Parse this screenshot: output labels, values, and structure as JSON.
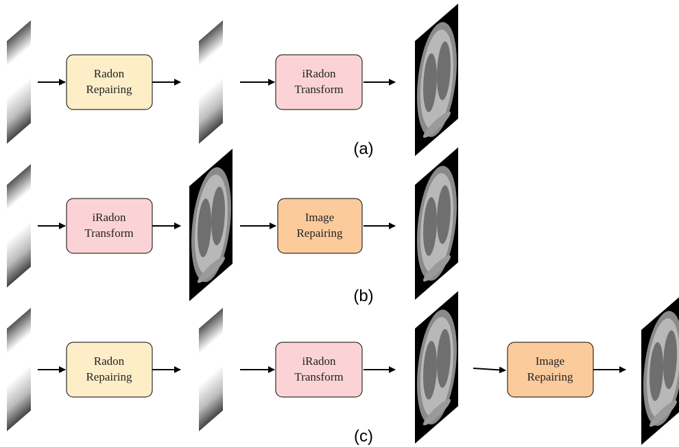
{
  "rows": [
    {
      "caption": "(a)",
      "steps": [
        {
          "label": [
            "Radon",
            "Repairing"
          ]
        },
        {
          "label": [
            "iRadon",
            "Transform"
          ]
        }
      ]
    },
    {
      "caption": "(b)",
      "steps": [
        {
          "label": [
            "iRadon",
            "Transform"
          ]
        },
        {
          "label": [
            "Image",
            "Repairing"
          ]
        }
      ]
    },
    {
      "caption": "(c)",
      "steps": [
        {
          "label": [
            "Radon",
            "Repairing"
          ]
        },
        {
          "label": [
            "iRadon",
            "Transform"
          ]
        },
        {
          "label": [
            "Image",
            "Repairing"
          ]
        }
      ]
    }
  ]
}
